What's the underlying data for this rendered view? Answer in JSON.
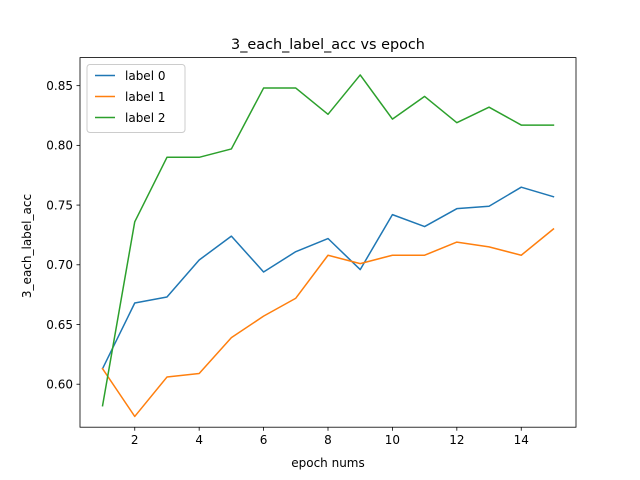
{
  "chart_data": {
    "type": "line",
    "title": "3_each_label_acc vs epoch",
    "xlabel": "epoch nums",
    "ylabel": "3_each_label_acc",
    "x": [
      1,
      2,
      3,
      4,
      5,
      6,
      7,
      8,
      9,
      10,
      11,
      12,
      13,
      14,
      15
    ],
    "xlim": [
      0.3,
      15.7
    ],
    "ylim": [
      0.564,
      0.8735
    ],
    "xticks": [
      2,
      4,
      6,
      8,
      10,
      12,
      14
    ],
    "yticks": [
      "0.60",
      "0.65",
      "0.70",
      "0.75",
      "0.80",
      "0.85"
    ],
    "grid": false,
    "legend_position": "upper left",
    "series": [
      {
        "name": "label 0",
        "color": "#1f77b4",
        "values": [
          0.613,
          0.668,
          0.673,
          0.704,
          0.724,
          0.694,
          0.711,
          0.722,
          0.696,
          0.742,
          0.732,
          0.747,
          0.749,
          0.765,
          0.757
        ]
      },
      {
        "name": "label 1",
        "color": "#ff7f0e",
        "values": [
          0.613,
          0.573,
          0.606,
          0.609,
          0.639,
          0.657,
          0.672,
          0.708,
          0.701,
          0.708,
          0.708,
          0.719,
          0.715,
          0.708,
          0.73
        ]
      },
      {
        "name": "label 2",
        "color": "#2ca02c",
        "values": [
          0.582,
          0.736,
          0.79,
          0.79,
          0.797,
          0.848,
          0.848,
          0.826,
          0.859,
          0.822,
          0.841,
          0.819,
          0.832,
          0.817,
          0.817
        ]
      }
    ]
  }
}
